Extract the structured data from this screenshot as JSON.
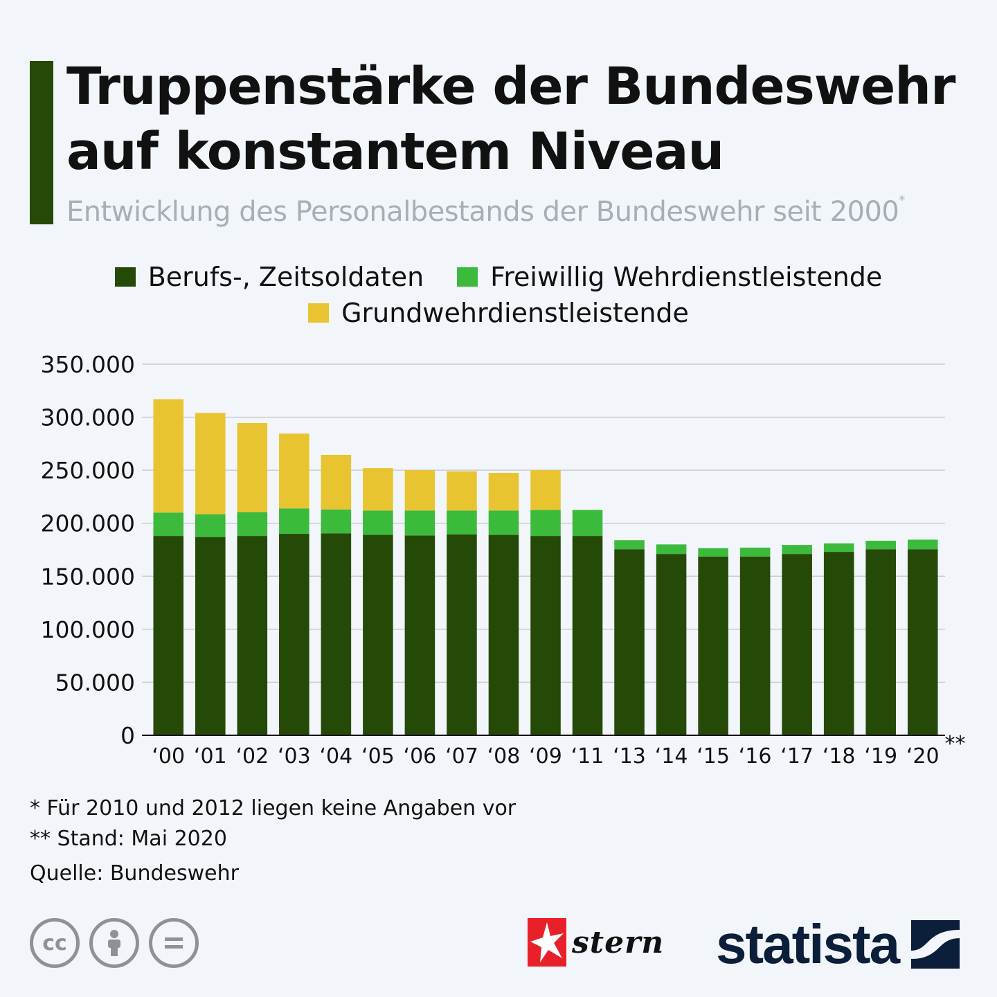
{
  "header": {
    "title_line1": "Truppenstärke der Bundeswehr",
    "title_line2": "auf konstantem Niveau",
    "subtitle": "Entwicklung des Personalbestands der Bundeswehr seit 2000",
    "subtitle_marker": "*"
  },
  "colors": {
    "accent": "#254a07",
    "berufs": "#254a07",
    "freiwillig": "#3cba3c",
    "grund": "#e9c431",
    "grid": "#c9ccd0",
    "background": "#f2f6fa"
  },
  "legend": {
    "items": [
      {
        "label": "Berufs-, Zeitsoldaten"
      },
      {
        "label": "Freiwillig Wehrdienstleistende"
      },
      {
        "label": "Grundwehrdienstleistende"
      }
    ]
  },
  "chart_data": {
    "type": "bar",
    "stacked": true,
    "categories": [
      "‘00",
      "‘01",
      "‘02",
      "‘03",
      "‘04",
      "‘05",
      "‘06",
      "‘07",
      "‘08",
      "‘09",
      "‘11",
      "‘13",
      "‘14",
      "‘15",
      "‘16",
      "‘17",
      "‘18",
      "‘19",
      "‘20"
    ],
    "last_category_marker": "**",
    "series": [
      {
        "name": "Berufs-, Zeitsoldaten",
        "values": [
          188000,
          187000,
          188000,
          190000,
          190500,
          189000,
          188500,
          189500,
          189000,
          188000,
          188000,
          175500,
          171000,
          168500,
          168500,
          171000,
          173000,
          175500,
          175500
        ]
      },
      {
        "name": "Freiwillig Wehrdienstleistende",
        "values": [
          22000,
          21500,
          22500,
          24000,
          22500,
          23000,
          23500,
          22500,
          23000,
          24500,
          24500,
          8500,
          9000,
          8000,
          8500,
          8500,
          8000,
          8000,
          9000
        ]
      },
      {
        "name": "Grundwehrdienstleistende",
        "values": [
          107000,
          95500,
          84000,
          70500,
          51500,
          40000,
          38000,
          37000,
          35500,
          37500,
          0,
          0,
          0,
          0,
          0,
          0,
          0,
          0,
          0
        ]
      }
    ],
    "yticks": [
      "0",
      "50.000",
      "100.000",
      "150.000",
      "200.000",
      "250.000",
      "300.000",
      "350.000"
    ],
    "ylim": [
      0,
      350000
    ],
    "title": "Truppenstärke der Bundeswehr auf konstantem Niveau",
    "xlabel": "",
    "ylabel": ""
  },
  "footnotes": {
    "note1": "*  Für 2010 und 2012 liegen keine Angaben vor",
    "note2": "** Stand: Mai 2020",
    "source": "Quelle: Bundeswehr"
  },
  "logos": {
    "stern": "stern",
    "statista": "statista",
    "cc_icon1": "cc"
  }
}
